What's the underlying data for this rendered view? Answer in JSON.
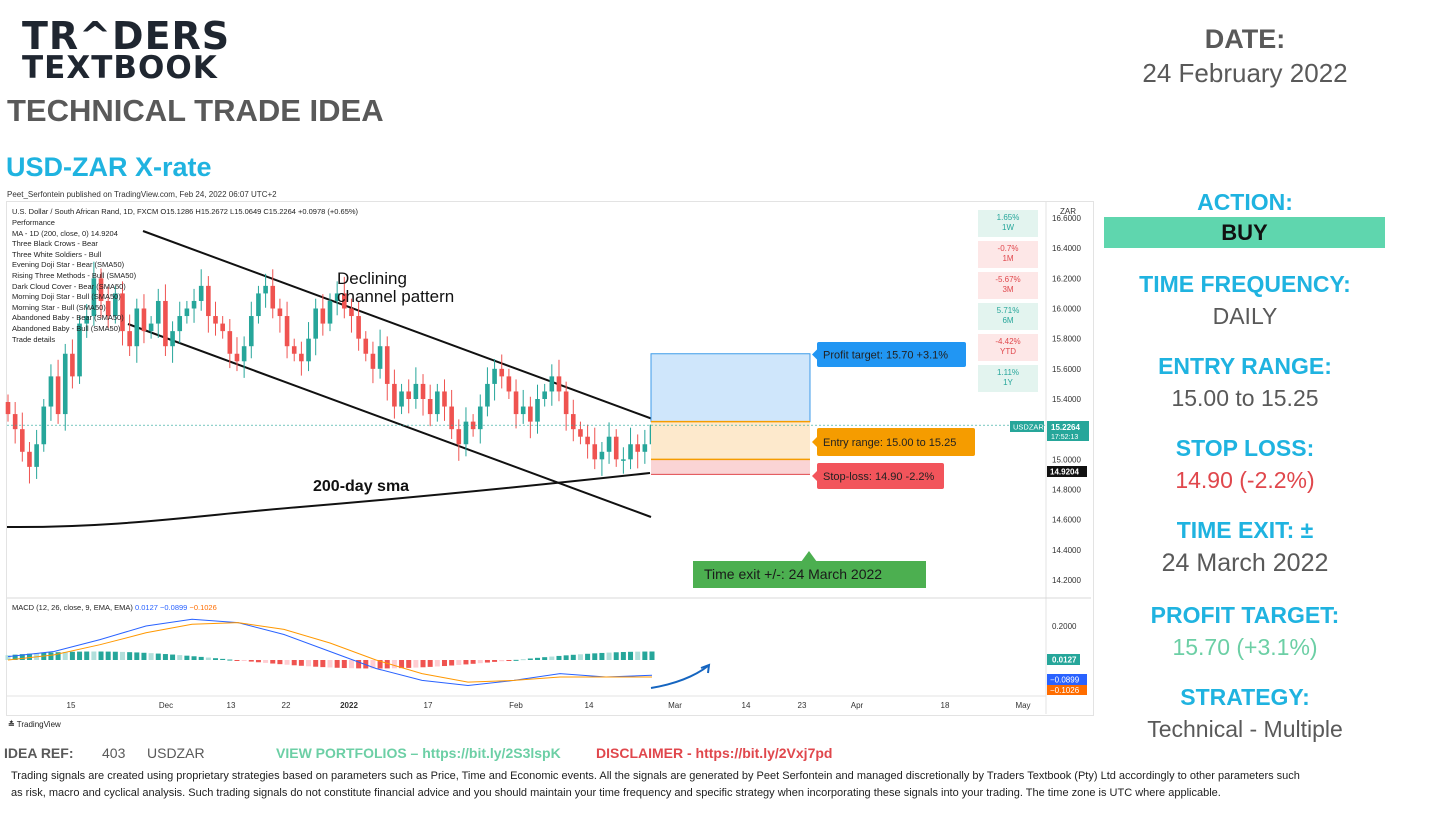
{
  "brand": {
    "line1": "TR^DERS",
    "line2": "TEXTBOOK"
  },
  "page_heading": "TECHNICAL TRADE IDEA",
  "asset_title": "USD-ZAR X-rate",
  "date": {
    "label": "DATE:",
    "value": "24 February 2022"
  },
  "panel": {
    "action_label": "ACTION:",
    "action_value": "BUY",
    "freq_label": "TIME FREQUENCY:",
    "freq_value": "DAILY",
    "entry_label": "ENTRY RANGE:",
    "entry_value": "15.00 to 15.25",
    "stop_label": "STOP LOSS:",
    "stop_value": "14.90 (-2.2%)",
    "exit_label": "TIME EXIT: ±",
    "exit_value": "24 March 2022",
    "profit_label": "PROFIT TARGET:",
    "profit_value": "15.70 (+3.1%)",
    "strategy_label": "STRATEGY:",
    "strategy_value": "Technical - Multiple"
  },
  "colors": {
    "accent": "#1fb3e0",
    "buy": "#5fd6ae",
    "stop": "#e0474c",
    "profit": "#6ccfa5",
    "text": "#595959",
    "up_candle": "#26a69a",
    "down_candle": "#ef5350"
  },
  "chart_header": {
    "published": "Peet_Serfontein published on TradingView.com, Feb 24, 2022 06:07 UTC+2",
    "symbol_line": "U.S. Dollar / South African Rand, 1D, FXCM  O15.1286  H15.2672  L15.0649  C15.2264  +0.0978 (+0.65%)",
    "indicators": [
      "Performance",
      "MA - 1D (200, close, 0)  14.9204",
      "Three Black Crows - Bear",
      "Three White Soldiers - Bull",
      "Evening Doji Star - Bear (SMA50)",
      "Rising Three Methods - Bull (SMA50)",
      "Dark Cloud Cover - Bear (SMA50)",
      "Morning Doji Star - Bull (SMA50)",
      "Morning Star - Bull (SMA50)",
      "Abandoned Baby - Bear (SMA50)",
      "Abandoned Baby - Bull (SMA50)",
      "Trade details"
    ],
    "currency": "ZAR"
  },
  "performance": [
    {
      "pct": "1.65%",
      "period": "1W"
    },
    {
      "pct": "-0.7%",
      "period": "1M"
    },
    {
      "pct": "-5.67%",
      "period": "3M"
    },
    {
      "pct": "5.71%",
      "period": "6M"
    },
    {
      "pct": "-4.42%",
      "period": "YTD"
    },
    {
      "pct": "1.11%",
      "period": "1Y"
    }
  ],
  "annotations": {
    "channel": [
      "Declining",
      "channel pattern"
    ],
    "sma": "200-day sma",
    "profit_tag": "Profit target: 15.70 +3.1%",
    "entry_tag": "Entry range: 15.00 to 15.25",
    "stop_tag": "Stop-loss: 14.90 -2.2%",
    "time_exit_tag": "Time exit +/-: 24 March 2022"
  },
  "price_tags": {
    "symbol": "USDZAR",
    "last": "15.2264",
    "countdown": "17:52:13",
    "ma": "14.9204"
  },
  "macd": {
    "label": "MACD (12, 26, close, 9, EMA, EMA)",
    "v1": "0.0127",
    "v2": "−0.0899",
    "v3": "−0.1026",
    "axis_tick": "0.2000",
    "tag_hist": "0.0127",
    "tag_macd": "−0.0899",
    "tag_signal": "−0.1026"
  },
  "chart_data": {
    "type": "candlestick",
    "title": "U.S. Dollar / South African Rand, 1D, FXCM",
    "y_ticks": [
      "16.6000",
      "16.4000",
      "16.2000",
      "16.0000",
      "15.8000",
      "15.6000",
      "15.4000",
      "15.2000",
      "15.0000",
      "14.8000",
      "14.6000",
      "14.4000",
      "14.2000"
    ],
    "ylim": [
      14.14,
      16.7
    ],
    "x_ticks": [
      "15",
      "Dec",
      "13",
      "22",
      "2022",
      "17",
      "Feb",
      "14",
      "Mar",
      "14",
      "23",
      "Apr",
      "18",
      "May"
    ],
    "closes": [
      15.3,
      15.2,
      15.05,
      14.95,
      15.1,
      15.35,
      15.55,
      15.3,
      15.7,
      15.55,
      15.9,
      15.95,
      16.2,
      16.05,
      15.95,
      16.1,
      15.85,
      15.75,
      16.0,
      15.85,
      15.9,
      16.05,
      15.75,
      15.85,
      15.95,
      16.0,
      16.05,
      16.15,
      15.95,
      15.9,
      15.85,
      15.7,
      15.65,
      15.75,
      15.95,
      16.1,
      16.15,
      16.0,
      15.95,
      15.75,
      15.7,
      15.65,
      15.8,
      16.0,
      15.9,
      16.05,
      16.1,
      16.0,
      15.95,
      15.8,
      15.7,
      15.6,
      15.75,
      15.5,
      15.35,
      15.45,
      15.4,
      15.5,
      15.4,
      15.3,
      15.45,
      15.35,
      15.2,
      15.1,
      15.25,
      15.2,
      15.35,
      15.5,
      15.6,
      15.55,
      15.45,
      15.3,
      15.35,
      15.25,
      15.4,
      15.45,
      15.55,
      15.45,
      15.3,
      15.2,
      15.15,
      15.1,
      15.0,
      15.05,
      15.15,
      15.0,
      15.0,
      15.1,
      15.05,
      15.1,
      15.23
    ],
    "ma200": "rising from 14.55 to 14.92",
    "channel_upper": [
      16.55,
      15.25
    ],
    "channel_lower": [
      15.9,
      14.62
    ],
    "trade_box": {
      "profit": 15.7,
      "entry_high": 15.25,
      "entry_low": 15.0,
      "stop": 14.9
    },
    "macd_lines": {
      "macd": [
        0.02,
        0.05,
        0.12,
        0.2,
        0.24,
        0.22,
        0.15,
        0.05,
        -0.05,
        -0.12,
        -0.15,
        -0.12,
        -0.08,
        -0.1,
        -0.09
      ],
      "signal": [
        0.0,
        0.03,
        0.09,
        0.16,
        0.21,
        0.22,
        0.18,
        0.1,
        0.0,
        -0.08,
        -0.13,
        -0.12,
        -0.1,
        -0.1,
        -0.1
      ]
    }
  },
  "footer": {
    "idea_ref_label": "IDEA REF:",
    "idea_ref_num": "403",
    "idea_ref_symbol": "USDZAR",
    "portfolios": "VIEW PORTFOLIOS – https://bit.ly/2S3lspK",
    "disclaimer": "DISCLAIMER -  https://bit.ly/2Vxj7pd",
    "disclaimer_text": "Trading signals are created using proprietary strategies based on parameters such as Price, Time and Economic events.  All the signals are generated by Peet Serfontein and managed discretionally by Traders Textbook (Pty) Ltd accordingly to other parameters such as risk, macro and cyclical analysis. Such trading signals do not constitute financial advice and you should maintain your time frequency and specific strategy when incorporating these signals into your trading. The time zone is UTC where applicable.",
    "tv_brand": "TradingView"
  }
}
